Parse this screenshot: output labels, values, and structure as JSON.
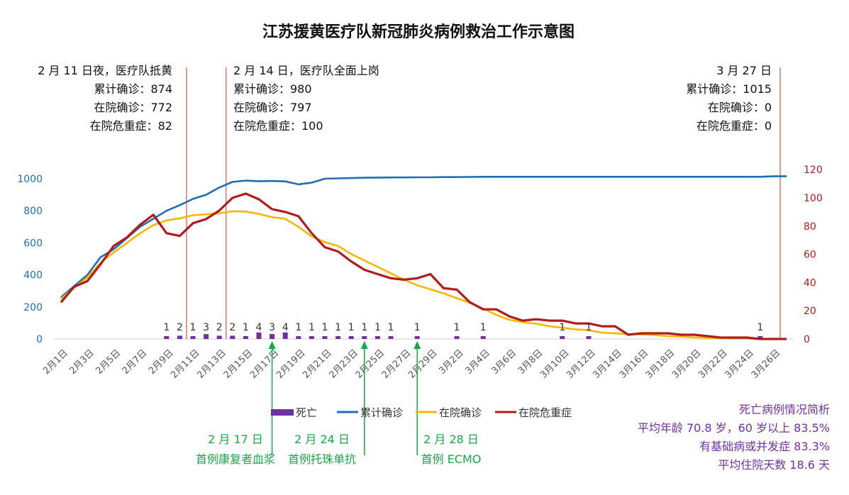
{
  "chart_data": {
    "type": "line",
    "title": "江苏援黄医疗队新冠肺炎病例救治工作示意图",
    "x": [
      "2月1日",
      "2月2日",
      "2月3日",
      "2月4日",
      "2月5日",
      "2月6日",
      "2月7日",
      "2月8日",
      "2月9日",
      "2月10日",
      "2月11日",
      "2月12日",
      "2月13日",
      "2月14日",
      "2月15日",
      "2月16日",
      "2月17日",
      "2月18日",
      "2月19日",
      "2月20日",
      "2月21日",
      "2月22日",
      "2月23日",
      "2月24日",
      "2月25日",
      "2月26日",
      "2月27日",
      "2月28日",
      "2月29日",
      "3月1日",
      "3月2日",
      "3月3日",
      "3月4日",
      "3月5日",
      "3月6日",
      "3月7日",
      "3月8日",
      "3月9日",
      "3月10日",
      "3月11日",
      "3月12日",
      "3月13日",
      "3月14日",
      "3月15日",
      "3月16日",
      "3月17日",
      "3月18日",
      "3月19日",
      "3月20日",
      "3月21日",
      "3月22日",
      "3月23日",
      "3月24日",
      "3月25日",
      "3月26日",
      "3月27日"
    ],
    "x_tick_labels": [
      "2月1日",
      "2月3日",
      "2月5日",
      "2月7日",
      "2月9日",
      "2月11日",
      "2月13日",
      "2月15日",
      "2月17日",
      "2月19日",
      "2月21日",
      "2月23日",
      "2月25日",
      "2月27日",
      "2月29日",
      "3月2日",
      "3月4日",
      "3月6日",
      "3月8日",
      "3月10日",
      "3月12日",
      "3月14日",
      "3月16日",
      "3月18日",
      "3月20日",
      "3月22日",
      "3月24日",
      "3月26日"
    ],
    "y_left": {
      "ylim": [
        0,
        1000
      ],
      "ticks": [
        "0",
        "200",
        "400",
        "600",
        "800",
        "1000"
      ],
      "color": "#1f6fb2"
    },
    "y_right": {
      "ylim": [
        0,
        120
      ],
      "ticks": [
        "0",
        "20",
        "40",
        "60",
        "80",
        "100",
        "120"
      ],
      "color": "#b01c1c"
    },
    "grid": false,
    "legend_position": "bottom",
    "series": [
      {
        "name": "死亡",
        "type": "bar",
        "axis": "left",
        "color": "#7030a0",
        "values": [
          0,
          0,
          0,
          0,
          0,
          0,
          0,
          0,
          1,
          2,
          1,
          3,
          2,
          2,
          1,
          4,
          3,
          4,
          1,
          1,
          1,
          1,
          1,
          1,
          1,
          1,
          0,
          1,
          0,
          0,
          1,
          0,
          1,
          0,
          0,
          0,
          0,
          0,
          1,
          0,
          1,
          0,
          0,
          0,
          0,
          0,
          0,
          0,
          0,
          0,
          0,
          0,
          0,
          1,
          0,
          0
        ],
        "labels": [
          "",
          "",
          "",
          "",
          "",
          "",
          "",
          "",
          "1",
          "2",
          "1",
          "3",
          "2",
          "2",
          "1",
          "4",
          "3",
          "4",
          "1",
          "1",
          "1",
          "1",
          "1",
          "1",
          "1",
          "1",
          "",
          "1",
          "",
          "",
          "1",
          "",
          "1",
          "",
          "",
          "",
          "",
          "",
          "1",
          "",
          "1",
          "",
          "",
          "",
          "",
          "",
          "",
          "",
          "",
          "",
          "",
          "",
          "",
          "1",
          "",
          ""
        ]
      },
      {
        "name": "累计确诊",
        "type": "line",
        "axis": "left",
        "color": "#1f6fb2",
        "values": [
          260,
          330,
          400,
          510,
          560,
          630,
          700,
          750,
          800,
          835,
          874,
          900,
          945,
          980,
          988,
          984,
          986,
          983,
          965,
          975,
          1000,
          1002,
          1004,
          1006,
          1007,
          1008,
          1008,
          1009,
          1009,
          1010,
          1010,
          1011,
          1012,
          1012,
          1012,
          1012,
          1012,
          1012,
          1012,
          1012,
          1012,
          1012,
          1012,
          1012,
          1012,
          1012,
          1012,
          1012,
          1012,
          1012,
          1012,
          1012,
          1012,
          1012,
          1015,
          1015
        ]
      },
      {
        "name": "在院确诊",
        "type": "line",
        "axis": "left",
        "color": "#f5b800",
        "values": [
          250,
          320,
          385,
          475,
          540,
          600,
          660,
          710,
          740,
          752,
          772,
          778,
          784,
          797,
          795,
          780,
          760,
          750,
          700,
          640,
          605,
          580,
          530,
          490,
          450,
          410,
          370,
          335,
          310,
          285,
          255,
          225,
          190,
          150,
          120,
          105,
          95,
          80,
          70,
          60,
          55,
          40,
          35,
          30,
          28,
          25,
          18,
          15,
          10,
          7,
          5,
          3,
          2,
          1,
          0,
          0
        ]
      },
      {
        "name": "在院危重症",
        "type": "line",
        "axis": "right",
        "color": "#b01c1c",
        "values": [
          26,
          37,
          41,
          53,
          66,
          72,
          81,
          88,
          75,
          73,
          82,
          85,
          91,
          100,
          103,
          99,
          92,
          90,
          87,
          75,
          65,
          62,
          55,
          49,
          46,
          43,
          42,
          43,
          46,
          36,
          35,
          26,
          21,
          21,
          16,
          13,
          14,
          13,
          13,
          11,
          11,
          9,
          9,
          3,
          4,
          4,
          4,
          3,
          3,
          2,
          1,
          1,
          1,
          0,
          0,
          0
        ]
      }
    ]
  },
  "annotations": [
    {
      "lines": [
        "2 月 11 日夜，医疗队抵黄",
        "累计确诊：874",
        "在院确诊：772",
        "在院危重症：82"
      ]
    },
    {
      "lines": [
        "2 月 14 日，医疗队全面上岗",
        "累计确诊：980",
        "在院确诊：797",
        "在院危重症：100"
      ]
    },
    {
      "lines": [
        "3 月 27 日",
        "累计确诊：1015",
        "在院确诊：0",
        "在院危重症：0"
      ]
    }
  ],
  "events": [
    {
      "date": "2 月 17 日",
      "label": "首例康复者血浆"
    },
    {
      "date": "2 月 24 日",
      "label": "首例托珠单抗"
    },
    {
      "date": "2 月 28 日",
      "label": "首例 ECMO"
    }
  ],
  "death_summary": {
    "title": "死亡病例情况简析",
    "lines": [
      "平均年龄 70.8 岁，60 岁以上 83.5%",
      "有基础病或并发症 83.3%",
      "平均住院天数 18.6 天"
    ]
  },
  "colors": {
    "event_arrow": "#1aa548",
    "marker_line": "#c0392b",
    "summary_text": "#7030a0",
    "axis_line": "#d0d0d0"
  }
}
